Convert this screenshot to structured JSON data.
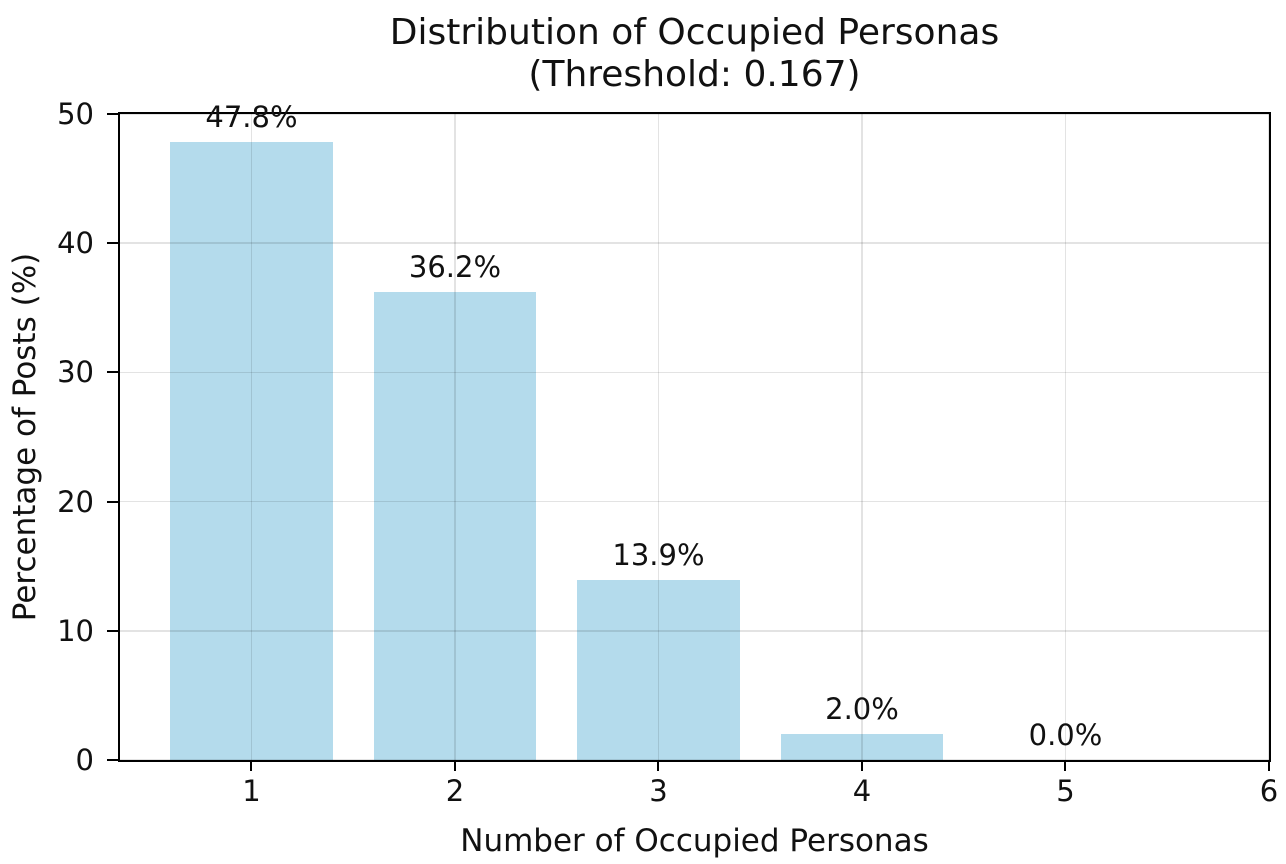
{
  "accent_colors": {
    "bar_fill": "#b4dbec",
    "grid": "rgba(0,0,0,0.11)",
    "spine": "#000000",
    "text": "#111111"
  },
  "chart_data": {
    "type": "bar",
    "title": "Distribution of Occupied Personas",
    "subtitle": "(Threshold: 0.167)",
    "xlabel": "Number of Occupied Personas",
    "ylabel": "Percentage of Posts (%)",
    "x": [
      1,
      2,
      3,
      4,
      5
    ],
    "values": [
      47.8,
      36.2,
      13.9,
      2.0,
      0.0
    ],
    "bar_labels": [
      "47.8%",
      "36.2%",
      "13.9%",
      "2.0%",
      "0.0%"
    ],
    "bar_width": 0.8,
    "bar_color": "#b4dbec",
    "grid": true,
    "grid_color": "rgba(0,0,0,0.11)",
    "legend": null,
    "xlim": [
      0.354,
      6.0
    ],
    "ylim": [
      0,
      50
    ],
    "xticks": [
      "1",
      "2",
      "3",
      "4",
      "5",
      "6"
    ],
    "xtick_values": [
      1,
      2,
      3,
      4,
      5,
      6
    ],
    "yticks": [
      "0",
      "10",
      "20",
      "30",
      "40",
      "50"
    ],
    "ytick_values": [
      0,
      10,
      20,
      30,
      40,
      50
    ]
  }
}
